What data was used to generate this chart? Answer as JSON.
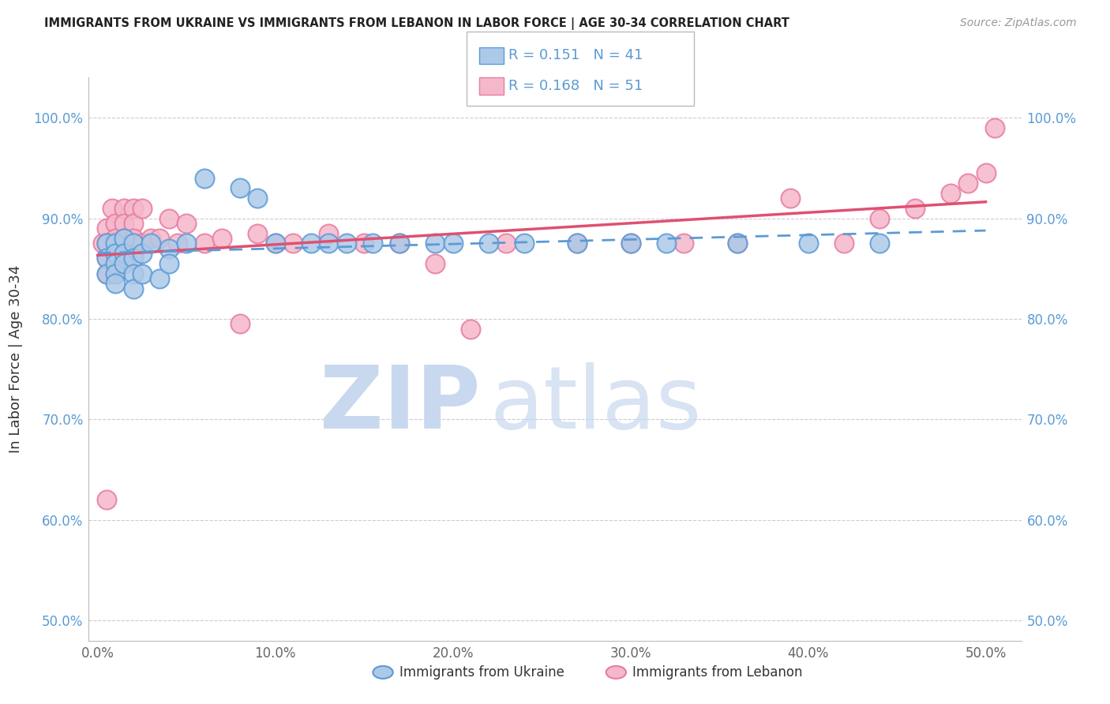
{
  "title": "IMMIGRANTS FROM UKRAINE VS IMMIGRANTS FROM LEBANON IN LABOR FORCE | AGE 30-34 CORRELATION CHART",
  "source": "Source: ZipAtlas.com",
  "ylabel": "In Labor Force | Age 30-34",
  "xlim": [
    -0.005,
    0.52
  ],
  "ylim": [
    0.48,
    1.04
  ],
  "ytick_values": [
    0.5,
    0.6,
    0.7,
    0.8,
    0.9,
    1.0
  ],
  "ytick_labels": [
    "50.0%",
    "60.0%",
    "70.0%",
    "80.0%",
    "90.0%",
    "100.0%"
  ],
  "xtick_values": [
    0.0,
    0.1,
    0.2,
    0.3,
    0.4,
    0.5
  ],
  "xtick_labels": [
    "0.0%",
    "10.0%",
    "20.0%",
    "30.0%",
    "40.0%",
    "50.0%"
  ],
  "ukraine_color": "#adc9e8",
  "ukraine_edge_color": "#5b9bd5",
  "lebanon_color": "#f5b8cb",
  "lebanon_edge_color": "#e87ca0",
  "ukraine_R": 0.151,
  "ukraine_N": 41,
  "lebanon_R": 0.168,
  "lebanon_N": 51,
  "trend_ukraine_color": "#5b9bd5",
  "trend_lebanon_color": "#e05070",
  "legend_label_ukraine": "Immigrants from Ukraine",
  "legend_label_lebanon": "Immigrants from Lebanon",
  "ukraine_x": [
    0.005,
    0.005,
    0.005,
    0.01,
    0.01,
    0.01,
    0.01,
    0.01,
    0.015,
    0.015,
    0.015,
    0.02,
    0.02,
    0.02,
    0.02,
    0.025,
    0.025,
    0.03,
    0.035,
    0.04,
    0.04,
    0.05,
    0.06,
    0.08,
    0.09,
    0.1,
    0.12,
    0.13,
    0.14,
    0.155,
    0.17,
    0.19,
    0.2,
    0.22,
    0.24,
    0.27,
    0.3,
    0.32,
    0.36,
    0.4,
    0.44
  ],
  "ukraine_y": [
    0.875,
    0.86,
    0.845,
    0.875,
    0.865,
    0.855,
    0.845,
    0.835,
    0.88,
    0.865,
    0.855,
    0.875,
    0.86,
    0.845,
    0.83,
    0.865,
    0.845,
    0.875,
    0.84,
    0.87,
    0.855,
    0.875,
    0.94,
    0.93,
    0.92,
    0.875,
    0.875,
    0.875,
    0.875,
    0.875,
    0.875,
    0.875,
    0.875,
    0.875,
    0.875,
    0.875,
    0.875,
    0.875,
    0.875,
    0.875,
    0.875
  ],
  "lebanon_x": [
    0.003,
    0.005,
    0.005,
    0.005,
    0.005,
    0.005,
    0.008,
    0.01,
    0.01,
    0.01,
    0.01,
    0.01,
    0.015,
    0.015,
    0.015,
    0.015,
    0.02,
    0.02,
    0.02,
    0.02,
    0.025,
    0.025,
    0.03,
    0.035,
    0.04,
    0.045,
    0.05,
    0.06,
    0.07,
    0.08,
    0.09,
    0.1,
    0.11,
    0.13,
    0.15,
    0.17,
    0.19,
    0.21,
    0.23,
    0.27,
    0.3,
    0.33,
    0.36,
    0.39,
    0.42,
    0.44,
    0.46,
    0.48,
    0.49,
    0.5,
    0.505
  ],
  "lebanon_y": [
    0.875,
    0.89,
    0.875,
    0.86,
    0.845,
    0.62,
    0.91,
    0.895,
    0.88,
    0.865,
    0.855,
    0.845,
    0.91,
    0.895,
    0.88,
    0.865,
    0.91,
    0.895,
    0.88,
    0.865,
    0.91,
    0.875,
    0.88,
    0.88,
    0.9,
    0.875,
    0.895,
    0.875,
    0.88,
    0.795,
    0.885,
    0.875,
    0.875,
    0.885,
    0.875,
    0.875,
    0.855,
    0.79,
    0.875,
    0.875,
    0.875,
    0.875,
    0.875,
    0.92,
    0.875,
    0.9,
    0.91,
    0.925,
    0.935,
    0.945,
    0.99
  ]
}
